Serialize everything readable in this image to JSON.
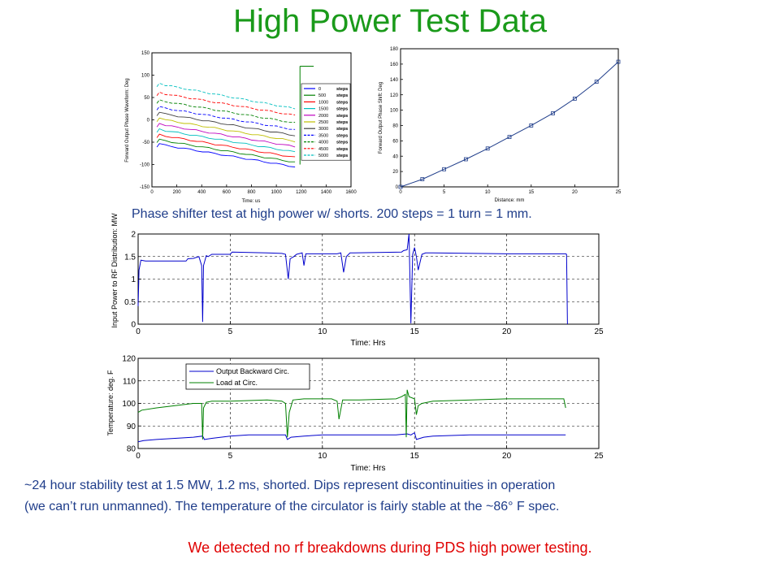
{
  "slide": {
    "title": "High Power Test Data",
    "caption_1": "Phase shifter test at high power w/ shorts. 200 steps = 1 turn = 1 mm.",
    "caption_2_line1": "~24 hour stability test at 1.5 MW, 1.2 ms, shorted. Dips represent discontinuities in operation",
    "caption_2_line2": "(we can’t run unmanned). The temperature of the circulator is fairly stable at the ~86° F spec.",
    "conclusion": "We detected no rf breakdowns during PDS high power testing."
  },
  "colors": {
    "title": "#1a9a1a",
    "caption": "#1f3d8a",
    "conclusion": "#e00000"
  },
  "chart_data": [
    {
      "id": "waveforms",
      "type": "line",
      "xlabel": "Time: us",
      "ylabel": "Forward Output Phase Waveform: Deg",
      "xlim": [
        0,
        1600
      ],
      "ylim": [
        -150,
        150
      ],
      "xticks": [
        0,
        200,
        400,
        600,
        800,
        1000,
        1200,
        1400,
        1600
      ],
      "yticks": [
        -150,
        -100,
        -50,
        0,
        50,
        100,
        150
      ],
      "legend_position": "right",
      "series": [
        {
          "name": "0",
          "unit": "steps",
          "color": "#0000ff",
          "dash": "",
          "start": -55,
          "end": -105
        },
        {
          "name": "500",
          "unit": "steps",
          "color": "#008000",
          "dash": "",
          "start": -45,
          "end": -95
        },
        {
          "name": "1000",
          "unit": "steps",
          "color": "#ff0000",
          "dash": "",
          "start": -34,
          "end": -84
        },
        {
          "name": "1500",
          "unit": "steps",
          "color": "#00bfbf",
          "dash": "",
          "start": -22,
          "end": -72
        },
        {
          "name": "2000",
          "unit": "steps",
          "color": "#bf00bf",
          "dash": "",
          "start": -10,
          "end": -60
        },
        {
          "name": "2500",
          "unit": "steps",
          "color": "#bfbf00",
          "dash": "",
          "start": 2,
          "end": -48
        },
        {
          "name": "3000",
          "unit": "steps",
          "color": "#404040",
          "dash": "",
          "start": 15,
          "end": -35
        },
        {
          "name": "3500",
          "unit": "steps",
          "color": "#0000ff",
          "dash": "4 2",
          "start": 28,
          "end": -22
        },
        {
          "name": "4000",
          "unit": "steps",
          "color": "#008000",
          "dash": "4 2",
          "start": 43,
          "end": -7
        },
        {
          "name": "4500",
          "unit": "steps",
          "color": "#ff0000",
          "dash": "4 2",
          "start": 60,
          "end": 10
        },
        {
          "name": "5000",
          "unit": "steps",
          "color": "#00bfbf",
          "dash": "4 2",
          "start": 80,
          "end": 25
        }
      ]
    },
    {
      "id": "phase-vs-distance",
      "type": "line",
      "xlabel": "Distance: mm",
      "ylabel": "Forward Output Phase Shift: Deg",
      "xlim": [
        0,
        25
      ],
      "ylim": [
        0,
        180
      ],
      "xticks": [
        0,
        5,
        10,
        15,
        20,
        25
      ],
      "yticks": [
        0,
        20,
        40,
        60,
        80,
        100,
        120,
        140,
        160,
        180
      ],
      "series": [
        {
          "x": [
            0,
            2.5,
            5,
            7.5,
            10,
            12.5,
            15,
            17.5,
            20,
            22.5,
            25
          ],
          "y": [
            0,
            10,
            23,
            36,
            50,
            65,
            80,
            96,
            115,
            137,
            163
          ]
        }
      ]
    },
    {
      "id": "input-power",
      "type": "line",
      "xlabel": "Time: Hrs",
      "ylabel": "Input Power to RF Distribution: MW",
      "xlim": [
        0,
        25
      ],
      "ylim": [
        0,
        2
      ],
      "xticks": [
        0,
        5,
        10,
        15,
        20,
        25
      ],
      "yticks": [
        0,
        0.5,
        1,
        1.5,
        2
      ],
      "grid": true,
      "series": [
        {
          "color": "#0000cc",
          "x": [
            0,
            0.05,
            0.15,
            0.4,
            2.6,
            2.7,
            3.0,
            3.3,
            3.45,
            3.5,
            3.55,
            3.7,
            3.8,
            4.0,
            5.0,
            5.1,
            7.0,
            7.8,
            8.0,
            8.15,
            8.25,
            8.45,
            8.6,
            8.9,
            9.0,
            9.1,
            10.8,
            11.0,
            11.15,
            11.3,
            11.5,
            11.7,
            14.3,
            14.4,
            14.6,
            14.7,
            14.8,
            14.9,
            15.0,
            15.1,
            15.2,
            15.4,
            15.6,
            16,
            20,
            23.2,
            23.25,
            23.3
          ],
          "y": [
            0.4,
            1.2,
            1.42,
            1.4,
            1.4,
            1.45,
            1.46,
            1.5,
            1.3,
            0.05,
            1.3,
            1.52,
            1.5,
            1.55,
            1.55,
            1.6,
            1.58,
            1.57,
            1.55,
            1.0,
            1.45,
            1.5,
            1.55,
            1.58,
            1.3,
            1.56,
            1.56,
            1.58,
            1.15,
            1.5,
            1.58,
            1.58,
            1.6,
            1.63,
            1.65,
            2.0,
            0.02,
            1.55,
            1.7,
            1.5,
            1.2,
            1.55,
            1.58,
            1.58,
            1.56,
            1.56,
            1.55,
            0
          ]
        }
      ]
    },
    {
      "id": "temperature",
      "type": "line",
      "xlabel": "Time: Hrs",
      "ylabel": "Temperature: deg. F",
      "xlim": [
        0,
        25
      ],
      "ylim": [
        80,
        120
      ],
      "xticks": [
        0,
        5,
        10,
        15,
        20,
        25
      ],
      "yticks": [
        80,
        90,
        100,
        110,
        120
      ],
      "grid": true,
      "legend_position": "top-left",
      "series": [
        {
          "name": "Output Backward Circ.",
          "color": "#0000cc",
          "x": [
            0,
            0.3,
            1,
            2,
            3,
            3.5,
            3.6,
            4,
            5,
            6,
            7,
            8,
            8.1,
            8.3,
            9,
            10,
            11,
            12,
            13,
            14,
            14.6,
            14.8,
            15,
            15.1,
            15.5,
            16,
            18,
            20,
            22,
            23.2
          ],
          "y": [
            83,
            83.5,
            84,
            84.5,
            85,
            85.5,
            84,
            84.5,
            85.5,
            86,
            86,
            86,
            84,
            85,
            85.5,
            86,
            86,
            86,
            86,
            86,
            86.5,
            86,
            87,
            84,
            85,
            85.5,
            86,
            86,
            86,
            86
          ]
        },
        {
          "name": "Load at Circ.",
          "color": "#008000",
          "x": [
            0,
            0.2,
            1,
            2,
            3,
            3.45,
            3.5,
            3.55,
            3.7,
            4,
            5,
            7,
            7.8,
            8.0,
            8.1,
            8.2,
            8.4,
            9,
            10.5,
            10.8,
            10.9,
            11.1,
            12,
            14,
            14.3,
            14.5,
            14.55,
            14.6,
            14.7,
            15.0,
            15.1,
            15.2,
            15.4,
            16,
            20,
            23.1,
            23.2
          ],
          "y": [
            96,
            97,
            98,
            99,
            100,
            100,
            84,
            98,
            100.5,
            101,
            101,
            101.5,
            101,
            100,
            85,
            96,
            101.5,
            102,
            102,
            101,
            93,
            101.5,
            101.5,
            102,
            103,
            104,
            85,
            106,
            103,
            102,
            95,
            99,
            100,
            101,
            102,
            102,
            98
          ]
        }
      ]
    }
  ]
}
